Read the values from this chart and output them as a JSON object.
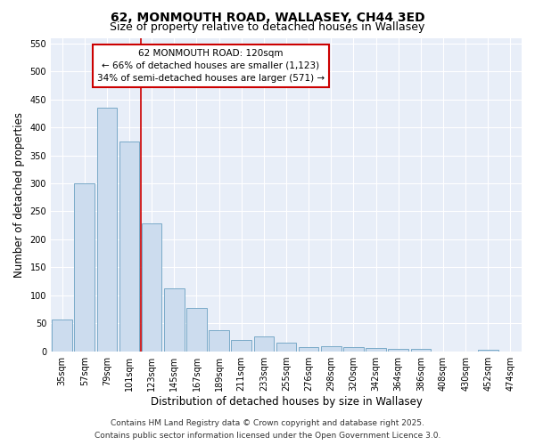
{
  "title": "62, MONMOUTH ROAD, WALLASEY, CH44 3ED",
  "subtitle": "Size of property relative to detached houses in Wallasey",
  "xlabel": "Distribution of detached houses by size in Wallasey",
  "ylabel": "Number of detached properties",
  "bar_labels": [
    "35sqm",
    "57sqm",
    "79sqm",
    "101sqm",
    "123sqm",
    "145sqm",
    "167sqm",
    "189sqm",
    "211sqm",
    "233sqm",
    "255sqm",
    "276sqm",
    "298sqm",
    "320sqm",
    "342sqm",
    "364sqm",
    "386sqm",
    "408sqm",
    "430sqm",
    "452sqm",
    "474sqm"
  ],
  "bar_values": [
    57,
    300,
    435,
    375,
    228,
    113,
    78,
    37,
    20,
    26,
    15,
    7,
    9,
    7,
    5,
    4,
    4,
    0,
    0,
    3,
    0
  ],
  "bar_color": "#ccdcee",
  "bar_edge_color": "#7aaac8",
  "vline_x": 4,
  "vline_color": "#cc0000",
  "annotation_text": "62 MONMOUTH ROAD: 120sqm\n← 66% of detached houses are smaller (1,123)\n34% of semi-detached houses are larger (571) →",
  "annotation_box_color": "#ffffff",
  "annotation_box_edge_color": "#cc0000",
  "ylim": [
    0,
    560
  ],
  "yticks": [
    0,
    50,
    100,
    150,
    200,
    250,
    300,
    350,
    400,
    450,
    500,
    550
  ],
  "footer_line1": "Contains HM Land Registry data © Crown copyright and database right 2025.",
  "footer_line2": "Contains public sector information licensed under the Open Government Licence 3.0.",
  "background_color": "#ffffff",
  "plot_bg_color": "#e8eef8",
  "grid_color": "#ffffff",
  "title_fontsize": 10,
  "subtitle_fontsize": 9,
  "axis_label_fontsize": 8.5,
  "tick_fontsize": 7,
  "annotation_fontsize": 7.5,
  "footer_fontsize": 6.5
}
